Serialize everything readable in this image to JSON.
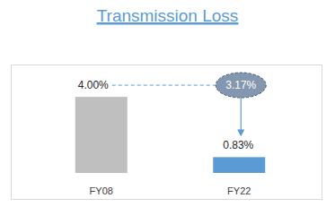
{
  "chart_data": {
    "type": "bar",
    "title": "Transmission Loss",
    "categories": [
      "FY08",
      "FY22"
    ],
    "values": [
      4.0,
      0.83
    ],
    "value_labels": [
      "4.00%",
      "0.83%"
    ],
    "colors": [
      "#bfbfbf",
      "#5b9bd5"
    ],
    "ylim": [
      0,
      5.7
    ],
    "data_labels": true,
    "tick_labels": "x",
    "annotations": [
      "3.17%"
    ]
  }
}
